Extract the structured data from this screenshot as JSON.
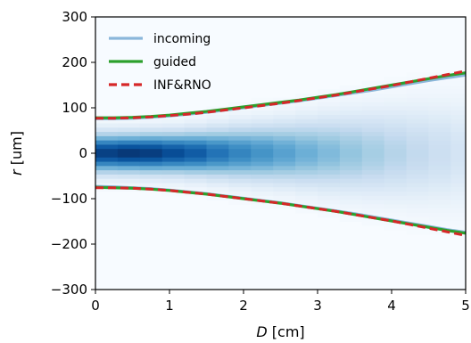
{
  "chart_data": {
    "type": "line",
    "background": "heatmap",
    "xlabel": {
      "italic": "D",
      "unit": " [cm]"
    },
    "ylabel": {
      "italic": "r",
      "unit": " [um]"
    },
    "xlim": [
      0,
      5
    ],
    "ylim": [
      -300,
      300
    ],
    "xticks": [
      0,
      1,
      2,
      3,
      4,
      5
    ],
    "yticks": [
      -300,
      -200,
      -100,
      0,
      100,
      200,
      300
    ],
    "grid": false,
    "legend_position": "top-left",
    "x": [
      0,
      0.25,
      0.5,
      0.75,
      1,
      1.25,
      1.5,
      1.75,
      2,
      2.25,
      2.5,
      2.75,
      3,
      3.25,
      3.5,
      3.75,
      4,
      4.25,
      4.5,
      4.75,
      5
    ],
    "series": [
      {
        "name": "incoming",
        "color": "#8ab6da",
        "dash": "solid",
        "upper": [
          76,
          76,
          77,
          79,
          82,
          86,
          90,
          95,
          100,
          105,
          110,
          115,
          121,
          127,
          133,
          139,
          146,
          153,
          160,
          166,
          172
        ],
        "lower": [
          -73,
          -74,
          -76,
          -78,
          -81,
          -85,
          -89,
          -94,
          -99,
          -104,
          -109,
          -115,
          -121,
          -127,
          -133,
          -140,
          -147,
          -154,
          -161,
          -168,
          -174
        ]
      },
      {
        "name": "guided",
        "color": "#2ca02c",
        "dash": "solid",
        "upper": [
          78,
          78,
          79,
          81,
          84,
          88,
          92,
          97,
          102,
          107,
          112,
          117,
          123,
          129,
          136,
          143,
          150,
          157,
          164,
          171,
          177
        ],
        "lower": [
          -75,
          -76,
          -77,
          -79,
          -82,
          -86,
          -90,
          -95,
          -100,
          -105,
          -110,
          -116,
          -122,
          -128,
          -135,
          -142,
          -149,
          -156,
          -163,
          -170,
          -176
        ]
      },
      {
        "name": "INF&RNO",
        "color": "#d62728",
        "dash": "dashed",
        "upper": [
          77,
          77,
          78,
          80,
          83,
          86,
          90,
          95,
          100,
          105,
          110,
          116,
          122,
          128,
          135,
          142,
          149,
          157,
          165,
          173,
          181
        ],
        "lower": [
          -76,
          -76,
          -77,
          -79,
          -82,
          -86,
          -90,
          -95,
          -100,
          -105,
          -110,
          -116,
          -122,
          -128,
          -135,
          -142,
          -149,
          -157,
          -165,
          -173,
          -181
        ]
      }
    ],
    "heatmap": {
      "colormap": "Blues",
      "x_centers": [
        0.15,
        0.45,
        0.75,
        1.05,
        1.35,
        1.65,
        1.95,
        2.25,
        2.55,
        2.85,
        3.15,
        3.45,
        3.75,
        4.05,
        4.35,
        4.65,
        4.95
      ],
      "peak_intensity": [
        0.95,
        0.98,
        0.96,
        0.9,
        0.84,
        0.75,
        0.68,
        0.62,
        0.56,
        0.5,
        0.45,
        0.4,
        0.35,
        0.3,
        0.26,
        0.22,
        0.18
      ],
      "beam_sigma_um": [
        28,
        28,
        29,
        30,
        32,
        35,
        38,
        41,
        44,
        48,
        52,
        56,
        60,
        64,
        68,
        72,
        76
      ]
    }
  }
}
